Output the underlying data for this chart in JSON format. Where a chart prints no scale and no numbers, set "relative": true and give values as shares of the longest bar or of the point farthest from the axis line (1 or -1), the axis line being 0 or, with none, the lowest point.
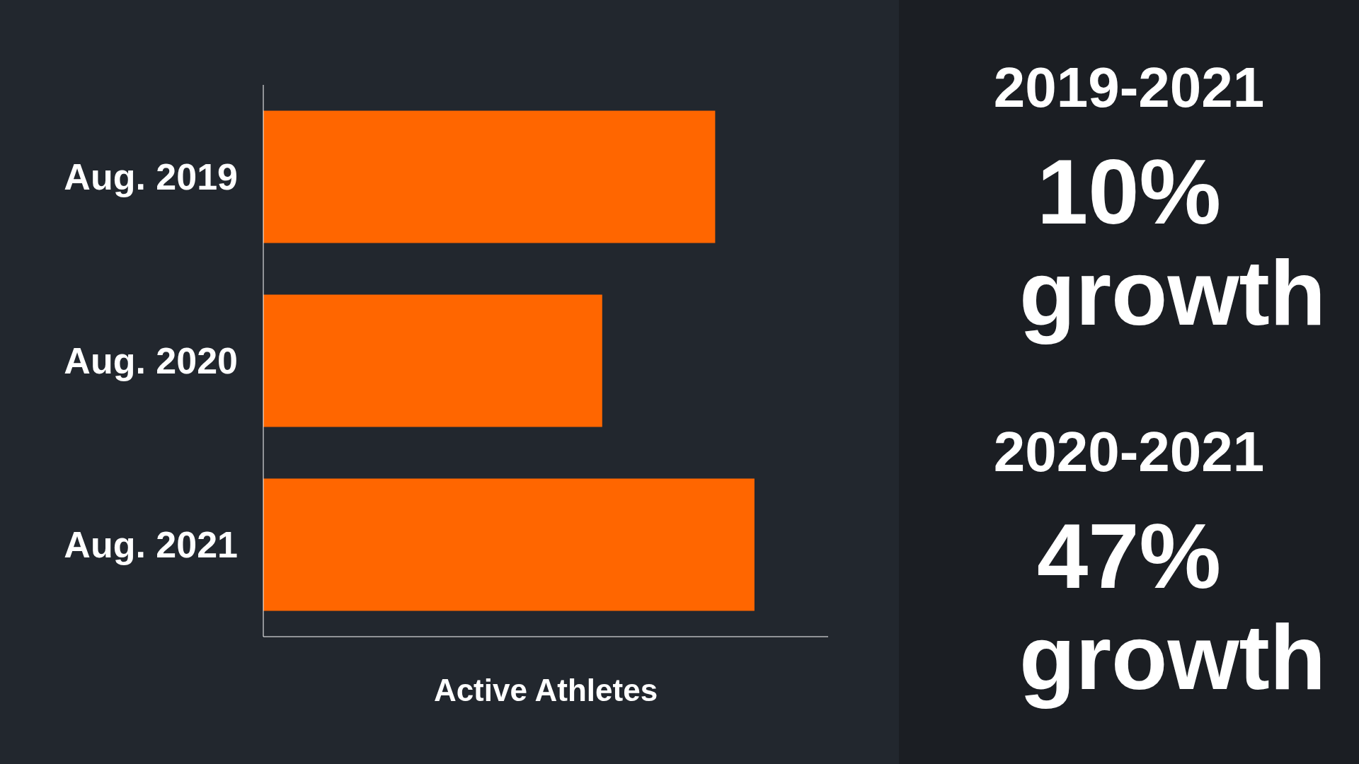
{
  "chart_data": {
    "type": "bar",
    "orientation": "horizontal",
    "relative": true,
    "xlabel": "Active Athletes",
    "categories": [
      "Aug. 2019",
      "Aug. 2020",
      "Aug. 2021"
    ],
    "values": [
      0.92,
      0.69,
      1
    ],
    "color": "#ff6600",
    "annotations": [
      "2019-2021",
      "10% growth",
      "2020-2021",
      "47% growth"
    ]
  }
}
